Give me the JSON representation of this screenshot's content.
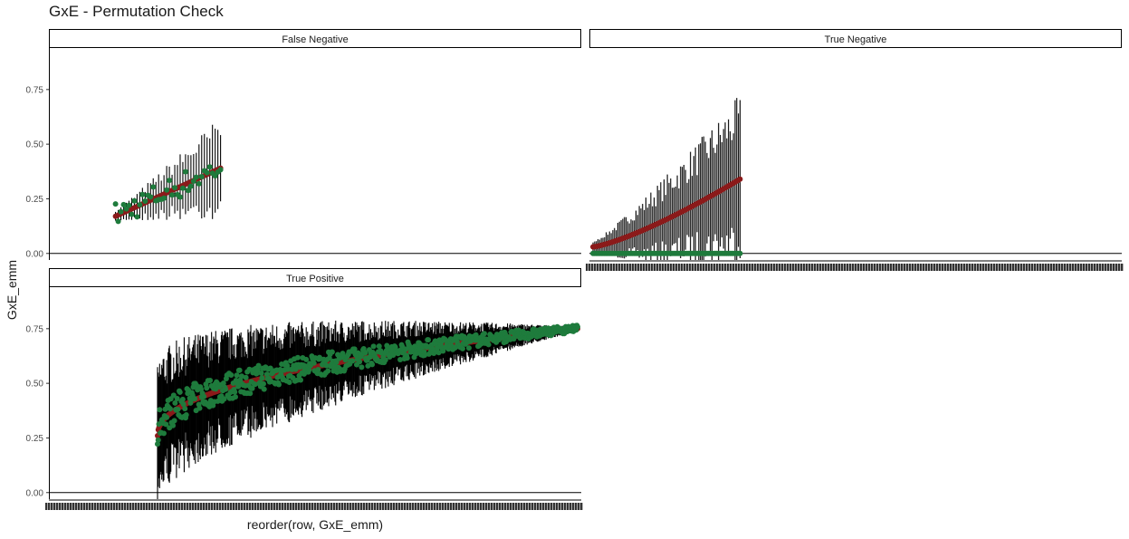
{
  "chart_data": {
    "type": "scatter",
    "title": "GxE - Permutation Check",
    "xlabel": "reorder(row, GxE_emm)",
    "ylabel": "GxE_emm",
    "ylim": [
      -0.03,
      0.94
    ],
    "y_ticks": [
      "0.00",
      "0.25",
      "0.50",
      "0.75"
    ],
    "y_tick_values": [
      0,
      0.25,
      0.5,
      0.75
    ],
    "grid": false,
    "colors": {
      "estimate": "#8b1a1a",
      "permuted": "#1e7b3c",
      "errorbar": "#000000",
      "frame": "#000000"
    },
    "panels": [
      {
        "label": "False Negative",
        "n": 40,
        "x_start": 0.12,
        "x_end": 0.32,
        "emm_range": [
          0.17,
          0.39
        ],
        "permuted_range": [
          0.06,
          0.55
        ],
        "error_halfwidth": [
          0.02,
          0.24
        ]
      },
      {
        "label": "True Negative",
        "n": 90,
        "x_start": 0.0,
        "x_end": 0.28,
        "emm_range": [
          0.03,
          0.34
        ],
        "permuted_value": 0.0,
        "error_halfwidth": [
          0.02,
          0.39
        ]
      },
      {
        "label": "True Positive",
        "n": 600,
        "x_start": 0.2,
        "x_end": 1.0,
        "emm_range": [
          0.26,
          0.75
        ],
        "permuted_range": [
          0.15,
          0.81
        ],
        "error_halfwidth": [
          0.01,
          0.33
        ]
      }
    ]
  }
}
